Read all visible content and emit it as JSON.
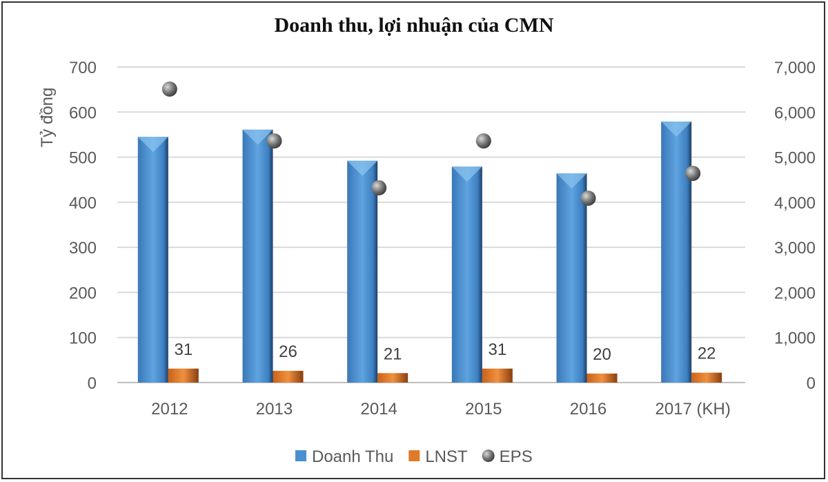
{
  "chart_data": {
    "type": "bar",
    "title": "Doanh thu, lợi nhuận của CMN",
    "ylabel": "Tỷ đồng",
    "xlabel": "",
    "categories": [
      "2012",
      "2013",
      "2014",
      "2015",
      "2016",
      "2017 (KH)"
    ],
    "ylim": [
      0,
      700
    ],
    "yticks": [
      "0",
      "100",
      "200",
      "300",
      "400",
      "500",
      "600",
      "700"
    ],
    "y2lim": [
      0,
      7000
    ],
    "y2ticks": [
      "0",
      "1,000",
      "2,000",
      "3,000",
      "4,000",
      "5,000",
      "6,000",
      "7,000"
    ],
    "grid": true,
    "legend_position": "bottom",
    "series": [
      {
        "name": "Doanh Thu",
        "type": "bar",
        "axis": "left",
        "color": "#4a8fd0",
        "values": [
          545,
          561,
          492,
          479,
          464,
          579
        ]
      },
      {
        "name": "LNST",
        "type": "bar",
        "axis": "left",
        "color": "#e07a2a",
        "values": [
          31,
          26,
          21,
          31,
          20,
          22
        ],
        "labels": [
          "31",
          "26",
          "21",
          "31",
          "20",
          "22"
        ]
      },
      {
        "name": "EPS",
        "type": "scatter",
        "axis": "right",
        "color": "#777777",
        "values": [
          6510,
          5360,
          4320,
          5360,
          4090,
          4640
        ]
      }
    ]
  }
}
